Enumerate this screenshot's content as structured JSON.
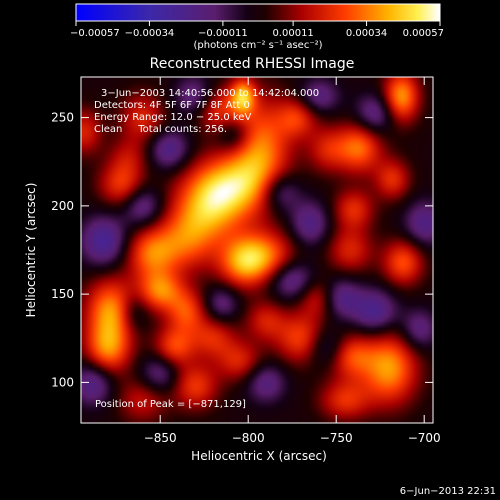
{
  "chart_data": {
    "type": "heatmap",
    "title": "Reconstructed RHESSI Image",
    "xlabel": "Heliocentric X (arcsec)",
    "ylabel": "Heliocentric Y (arcsec)",
    "xlim": [
      -895,
      -695
    ],
    "ylim": [
      77,
      273
    ],
    "xticks": [
      -850,
      -800,
      -750,
      -700
    ],
    "yticks": [
      100,
      150,
      200,
      250
    ],
    "xtick_labels": [
      "−850",
      "−800",
      "−750",
      "−700"
    ],
    "ytick_labels": [
      "100",
      "150",
      "200",
      "250"
    ],
    "colorbar": {
      "range": [
        -0.00057,
        0.00057
      ],
      "ticks": [
        -0.00057,
        -0.00034,
        -0.00011,
        0.00011,
        0.00034,
        0.00057
      ],
      "tick_labels": [
        "−0.00057",
        "−0.00034",
        "−0.00011",
        "0.00011",
        "0.00034",
        "0.00057"
      ],
      "units": "(photons cm⁻² s⁻¹ asec⁻²)"
    },
    "annotations": [
      "3−Jun−2003 14:40:56.000 to 14:42:04.000",
      "Detectors: 4F 5F 6F 7F 8F Att 0",
      "Energy Range: 12.0 − 25.0 keV",
      "Clean     Total counts: 256.",
      "Position of Peak = [−871,129]"
    ],
    "peak": {
      "x": -871,
      "y": 129
    },
    "sources": [
      {
        "x": -812,
        "y": 212,
        "amp": 1.0,
        "sx": 16,
        "sy": 12
      },
      {
        "x": -793,
        "y": 232,
        "amp": 0.9,
        "sx": 12,
        "sy": 20
      },
      {
        "x": -822,
        "y": 197,
        "amp": 0.8,
        "sx": 14,
        "sy": 12
      },
      {
        "x": -803,
        "y": 168,
        "amp": 0.85,
        "sx": 10,
        "sy": 10
      },
      {
        "x": -790,
        "y": 172,
        "amp": 0.75,
        "sx": 12,
        "sy": 10
      },
      {
        "x": -835,
        "y": 180,
        "amp": 0.7,
        "sx": 12,
        "sy": 12
      },
      {
        "x": -855,
        "y": 173,
        "amp": 0.8,
        "sx": 10,
        "sy": 10
      },
      {
        "x": -872,
        "y": 212,
        "amp": 0.65,
        "sx": 9,
        "sy": 9
      },
      {
        "x": -878,
        "y": 140,
        "amp": 1.0,
        "sx": 10,
        "sy": 13
      },
      {
        "x": -880,
        "y": 118,
        "amp": 0.8,
        "sx": 9,
        "sy": 10
      },
      {
        "x": -850,
        "y": 152,
        "amp": 0.85,
        "sx": 9,
        "sy": 8
      },
      {
        "x": -835,
        "y": 140,
        "amp": 0.7,
        "sx": 8,
        "sy": 9
      },
      {
        "x": -842,
        "y": 120,
        "amp": 0.7,
        "sx": 8,
        "sy": 8
      },
      {
        "x": -830,
        "y": 98,
        "amp": 0.65,
        "sx": 9,
        "sy": 9
      },
      {
        "x": -820,
        "y": 125,
        "amp": 0.55,
        "sx": 9,
        "sy": 8
      },
      {
        "x": -860,
        "y": 250,
        "amp": 0.55,
        "sx": 9,
        "sy": 10
      },
      {
        "x": -893,
        "y": 242,
        "amp": 0.55,
        "sx": 7,
        "sy": 9
      },
      {
        "x": -818,
        "y": 255,
        "amp": 0.6,
        "sx": 9,
        "sy": 9
      },
      {
        "x": -803,
        "y": 262,
        "amp": 1.0,
        "sx": 5,
        "sy": 7
      },
      {
        "x": -772,
        "y": 250,
        "amp": 0.6,
        "sx": 8,
        "sy": 8
      },
      {
        "x": -755,
        "y": 232,
        "amp": 0.5,
        "sx": 8,
        "sy": 9
      },
      {
        "x": -737,
        "y": 233,
        "amp": 0.85,
        "sx": 9,
        "sy": 10
      },
      {
        "x": -713,
        "y": 262,
        "amp": 1.0,
        "sx": 7,
        "sy": 10
      },
      {
        "x": -718,
        "y": 215,
        "amp": 0.6,
        "sx": 7,
        "sy": 8
      },
      {
        "x": -740,
        "y": 198,
        "amp": 0.6,
        "sx": 8,
        "sy": 8
      },
      {
        "x": -742,
        "y": 175,
        "amp": 0.55,
        "sx": 9,
        "sy": 9
      },
      {
        "x": -712,
        "y": 168,
        "amp": 0.75,
        "sx": 8,
        "sy": 9
      },
      {
        "x": -760,
        "y": 148,
        "amp": 0.55,
        "sx": 8,
        "sy": 8
      },
      {
        "x": -770,
        "y": 125,
        "amp": 0.7,
        "sx": 10,
        "sy": 10
      },
      {
        "x": -790,
        "y": 135,
        "amp": 0.5,
        "sx": 8,
        "sy": 8
      },
      {
        "x": -805,
        "y": 112,
        "amp": 0.55,
        "sx": 9,
        "sy": 8
      },
      {
        "x": -720,
        "y": 108,
        "amp": 1.0,
        "sx": 11,
        "sy": 14
      },
      {
        "x": -742,
        "y": 115,
        "amp": 0.7,
        "sx": 9,
        "sy": 9
      },
      {
        "x": -745,
        "y": 90,
        "amp": 0.6,
        "sx": 10,
        "sy": 8
      },
      {
        "x": -860,
        "y": 90,
        "amp": 0.45,
        "sx": 10,
        "sy": 9
      },
      {
        "x": -868,
        "y": 228,
        "amp": 0.35,
        "sx": 8,
        "sy": 8
      },
      {
        "x": -882,
        "y": 180,
        "amp": -0.7,
        "sx": 9,
        "sy": 10
      },
      {
        "x": -888,
        "y": 100,
        "amp": -0.6,
        "sx": 8,
        "sy": 9
      },
      {
        "x": -860,
        "y": 200,
        "amp": -0.55,
        "sx": 8,
        "sy": 8
      },
      {
        "x": -845,
        "y": 232,
        "amp": -0.6,
        "sx": 8,
        "sy": 8
      },
      {
        "x": -830,
        "y": 262,
        "amp": -0.55,
        "sx": 8,
        "sy": 8
      },
      {
        "x": -782,
        "y": 208,
        "amp": -0.6,
        "sx": 8,
        "sy": 8
      },
      {
        "x": -765,
        "y": 190,
        "amp": -0.55,
        "sx": 8,
        "sy": 9
      },
      {
        "x": -775,
        "y": 158,
        "amp": -0.6,
        "sx": 9,
        "sy": 8
      },
      {
        "x": -755,
        "y": 120,
        "amp": -0.5,
        "sx": 8,
        "sy": 8
      },
      {
        "x": -748,
        "y": 148,
        "amp": -0.6,
        "sx": 8,
        "sy": 8
      },
      {
        "x": -728,
        "y": 140,
        "amp": -0.65,
        "sx": 9,
        "sy": 9
      },
      {
        "x": -700,
        "y": 190,
        "amp": -0.55,
        "sx": 8,
        "sy": 9
      },
      {
        "x": -728,
        "y": 252,
        "amp": -0.55,
        "sx": 8,
        "sy": 8
      },
      {
        "x": -790,
        "y": 100,
        "amp": -0.5,
        "sx": 8,
        "sy": 8
      },
      {
        "x": -815,
        "y": 145,
        "amp": -0.45,
        "sx": 7,
        "sy": 7
      },
      {
        "x": -865,
        "y": 140,
        "amp": -0.4,
        "sx": 6,
        "sy": 8
      },
      {
        "x": -850,
        "y": 105,
        "amp": -0.5,
        "sx": 8,
        "sy": 8
      },
      {
        "x": -808,
        "y": 240,
        "amp": -0.45,
        "sx": 7,
        "sy": 7
      },
      {
        "x": -703,
        "y": 130,
        "amp": -0.5,
        "sx": 7,
        "sy": 8
      },
      {
        "x": -760,
        "y": 262,
        "amp": -0.5,
        "sx": 8,
        "sy": 7
      }
    ]
  },
  "footer": {
    "timestamp": "6−Jun−2013 22:31"
  }
}
